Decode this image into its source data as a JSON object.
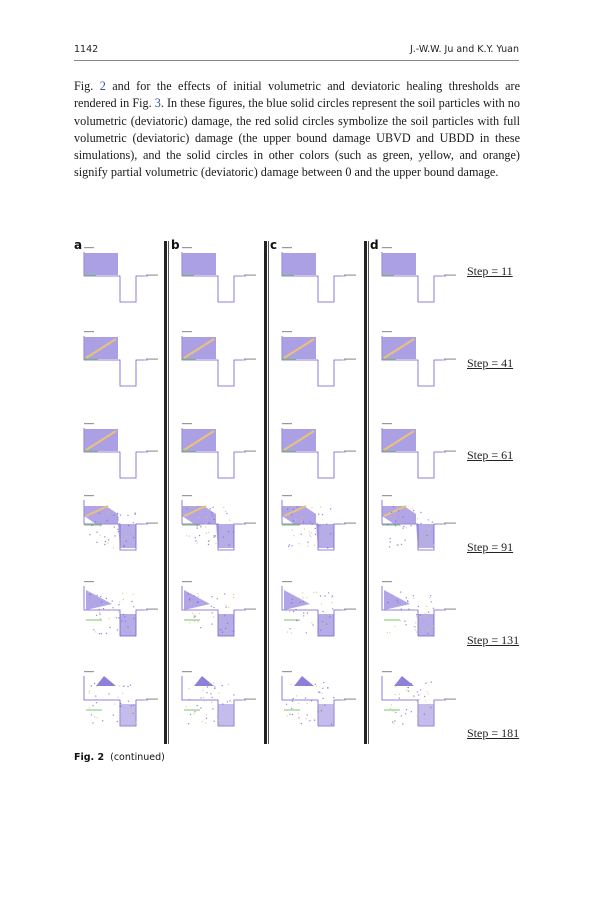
{
  "header": {
    "page_number": "1142",
    "running_head": "J.-W.W. Ju and K.Y. Yuan"
  },
  "body": {
    "p1_a": "Fig. ",
    "p1_ref1": "2",
    "p1_b": " and for the effects of initial volumetric and deviatoric healing thresholds are rendered in Fig. ",
    "p1_ref2": "3",
    "p1_c": ". In these figures, the blue solid circles represent the soil particles with no volumetric (deviatoric) damage, the red solid circles symbolize the soil particles with full volumetric (deviatoric) damage (the upper bound damage UBVD and UBDD in these simulations), and the solid circles in other colors (such as green, yellow, and orange) signify partial volumetric (deviatoric) damage between 0 and the upper bound damage."
  },
  "figure": {
    "panel_labels": [
      "a",
      "b",
      "c",
      "d"
    ],
    "step_labels": [
      "Step = 11",
      "Step = 41",
      "Step = 61",
      "Step = 91",
      "Step = 131",
      "Step = 181"
    ],
    "colors": {
      "soil": "#9d8fe0",
      "soil_dense": "#7a6ad1",
      "damage_partial": "#e8c27a",
      "damage_green": "#7cc46a",
      "outline": "#6b5fd0"
    }
  },
  "caption": {
    "label": "Fig. 2",
    "text": "(continued)"
  }
}
